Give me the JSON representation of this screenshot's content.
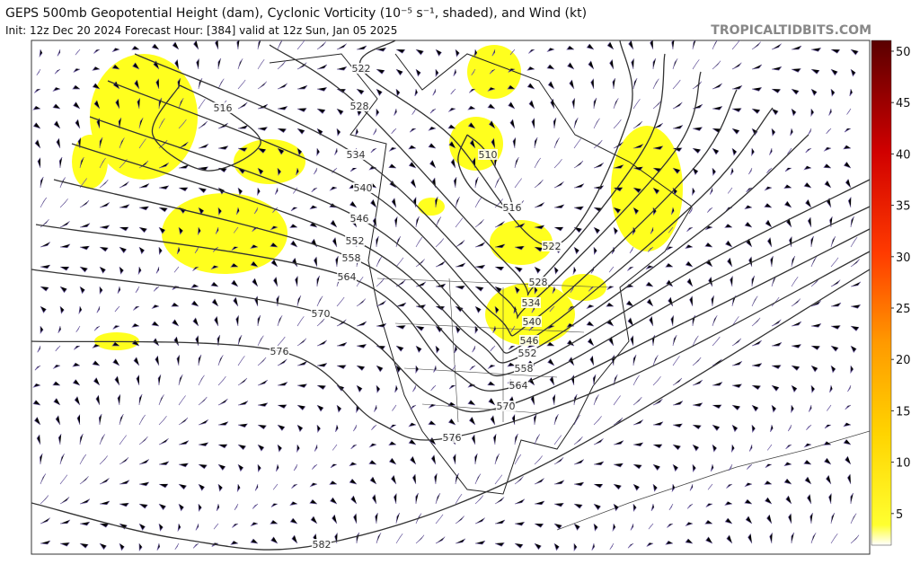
{
  "header": {
    "title": "GEPS 500mb Geopotential Height (dam), Cyclonic Vorticity (10⁻⁵ s⁻¹, shaded), and Wind (kt)",
    "subtitle": "Init: 12z Dec 20 2024   Forecast Hour: [384]   valid at 12z Sun, Jan 05 2025",
    "source": "TROPICALTIDBITS.COM"
  },
  "contour_labels": [
    "516",
    "522",
    "528",
    "534",
    "540",
    "546",
    "552",
    "558",
    "564",
    "570",
    "576",
    "582",
    "510",
    "516",
    "522",
    "528",
    "534",
    "540",
    "546",
    "552",
    "558",
    "564",
    "570",
    "576"
  ],
  "colorbar": {
    "ticks": [
      5,
      10,
      15,
      20,
      25,
      30,
      35,
      40,
      45,
      50
    ]
  }
}
